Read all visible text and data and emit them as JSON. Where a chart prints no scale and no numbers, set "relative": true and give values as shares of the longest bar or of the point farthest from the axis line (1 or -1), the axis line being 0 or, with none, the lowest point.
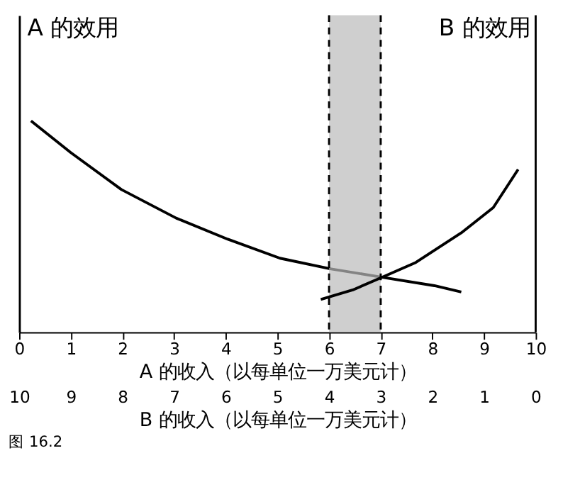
{
  "chart_data": {
    "type": "line",
    "relative": true,
    "ylabel": "A 的效用",
    "y2label": "B 的效用",
    "xlabel": "A 的收入（以每单位一万美元计）",
    "x2label": "B 的收入（以每单位一万美元计）",
    "xlim": [
      0,
      10
    ],
    "xticks": [
      0,
      1,
      2,
      3,
      4,
      5,
      6,
      7,
      8,
      9,
      10
    ],
    "x2lim": [
      10,
      0
    ],
    "x2ticks": [
      10,
      9,
      8,
      7,
      6,
      5,
      4,
      3,
      2,
      1,
      0
    ],
    "series": [
      {
        "color": "#000000",
        "x": [
          0.23,
          1.0,
          1.98,
          3.04,
          4.04,
          5.05,
          6.02,
          7.03,
          8.04,
          8.56
        ],
        "values": [
          1.0,
          0.85,
          0.675,
          0.54,
          0.44,
          0.35,
          0.3,
          0.26,
          0.22,
          0.19
        ]
      },
      {
        "color": "#000000",
        "x": [
          5.84,
          6.46,
          7.03,
          7.68,
          8.56,
          9.18,
          9.66
        ],
        "values": [
          0.155,
          0.2,
          0.26,
          0.33,
          0.47,
          0.59,
          0.77
        ]
      }
    ],
    "ref_lines": [
      {
        "axis": "x",
        "value": 6,
        "line_style": "dashed"
      },
      {
        "axis": "x",
        "value": 7,
        "line_style": "dashed"
      }
    ],
    "bands": [
      {
        "axis": "x",
        "from": 6,
        "to": 7,
        "color": "#bbbbbb"
      }
    ],
    "annotations": [
      "图 16.2"
    ],
    "grid": false
  }
}
